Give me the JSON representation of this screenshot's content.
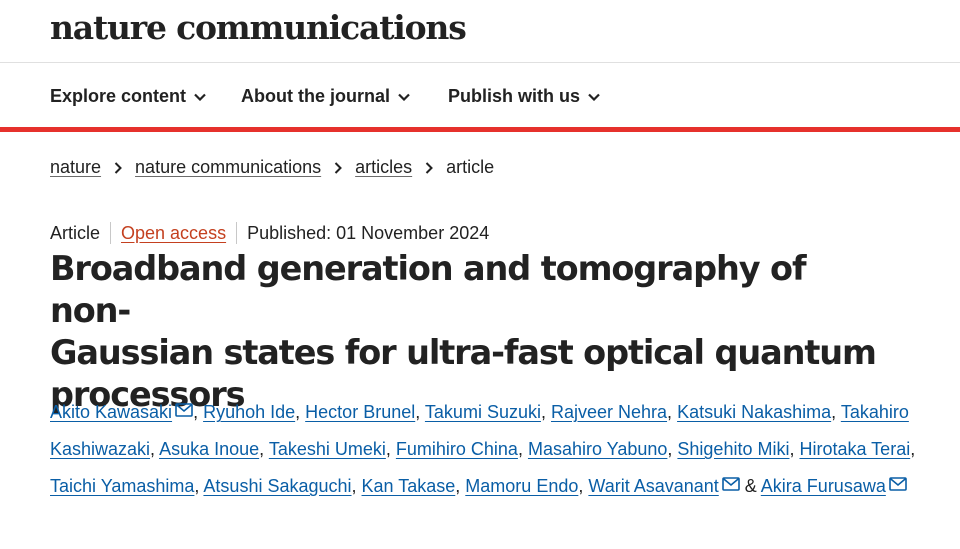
{
  "brand": {
    "logo_text": "nature communications"
  },
  "nav": {
    "items": [
      {
        "label": "Explore content"
      },
      {
        "label": "About the journal"
      },
      {
        "label": "Publish with us"
      }
    ]
  },
  "breadcrumb": {
    "items": [
      "nature",
      "nature communications",
      "articles"
    ],
    "current": "article"
  },
  "article": {
    "type": "Article",
    "access": "Open access",
    "published": "Published: 01 November 2024",
    "title_lines": [
      "Broadband generation and tomography of non-",
      "Gaussian states for ultra-fast optical quantum",
      "processors"
    ]
  },
  "authors": [
    {
      "name": "Akito Kawasaki",
      "email": true
    },
    {
      "name": "Ryuhoh Ide",
      "email": false
    },
    {
      "name": "Hector Brunel",
      "email": false
    },
    {
      "name": "Takumi Suzuki",
      "email": false
    },
    {
      "name": "Rajveer Nehra",
      "email": false
    },
    {
      "name": "Katsuki Nakashima",
      "email": false
    },
    {
      "name": "Takahiro Kashiwazaki",
      "email": false
    },
    {
      "name": "Asuka Inoue",
      "email": false
    },
    {
      "name": "Takeshi Umeki",
      "email": false
    },
    {
      "name": "Fumihiro China",
      "email": false
    },
    {
      "name": "Masahiro Yabuno",
      "email": false
    },
    {
      "name": "Shigehito Miki",
      "email": false
    },
    {
      "name": "Hirotaka Terai",
      "email": false
    },
    {
      "name": "Taichi Yamashima",
      "email": false
    },
    {
      "name": "Atsushi Sakaguchi",
      "email": false
    },
    {
      "name": "Kan Takase",
      "email": false
    },
    {
      "name": "Mamoru Endo",
      "email": false
    },
    {
      "name": "Warit Asavanant",
      "email": true
    },
    {
      "name": "Akira Furusawa",
      "email": true
    }
  ],
  "authors_separator": ", ",
  "authors_last_separator": " & ",
  "colors": {
    "brand_rule": "#e6312c",
    "link": "#0a5ea6",
    "open_access": "#c4401f",
    "text": "#222222"
  },
  "icons": {
    "nav_dropdown": "chevron-down-icon",
    "breadcrumb_separator": "chevron-right-icon",
    "author_email": "envelope-icon"
  }
}
